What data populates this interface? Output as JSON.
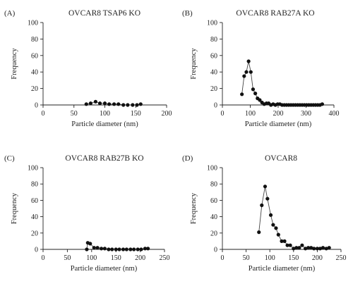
{
  "chart_data": [
    {
      "type": "line",
      "panel_label": "(A)",
      "title": "OVCAR8 TSAP6 KO",
      "xlabel": "Particle diameter (nm)",
      "ylabel": "Frequency",
      "xlim": [
        0,
        200
      ],
      "ylim": [
        0,
        100
      ],
      "xticks": [
        0,
        50,
        100,
        150,
        200
      ],
      "yticks": [
        0,
        20,
        40,
        60,
        80,
        100
      ],
      "series": [
        {
          "x": [
            70,
            77,
            85,
            92,
            100,
            107,
            115,
            122,
            130,
            137,
            145,
            152,
            158
          ],
          "y": [
            1,
            2,
            4,
            2,
            2,
            1,
            1,
            1,
            0,
            0,
            0,
            0,
            1
          ]
        }
      ]
    },
    {
      "type": "line",
      "panel_label": "(B)",
      "title": "OVCAR8 RAB27A KO",
      "xlabel": "Particle diameter (nm)",
      "ylabel": "Frequency",
      "xlim": [
        0,
        400
      ],
      "ylim": [
        0,
        100
      ],
      "xticks": [
        0,
        100,
        200,
        300,
        400
      ],
      "yticks": [
        0,
        20,
        40,
        60,
        80,
        100
      ],
      "series": [
        {
          "x": [
            70,
            78,
            86,
            94,
            102,
            110,
            118,
            126,
            134,
            142,
            150,
            158,
            166,
            174,
            182,
            190,
            198,
            206,
            214,
            222,
            230,
            238,
            246,
            254,
            262,
            270,
            278,
            286,
            294,
            302,
            310,
            318,
            326,
            334,
            342,
            350,
            358
          ],
          "y": [
            13,
            35,
            40,
            53,
            40,
            19,
            14,
            8,
            6,
            3,
            1,
            2,
            2,
            0,
            1,
            0,
            1,
            1,
            0,
            0,
            0,
            0,
            0,
            0,
            0,
            0,
            0,
            0,
            0,
            0,
            0,
            0,
            0,
            0,
            0,
            0,
            1
          ]
        }
      ]
    },
    {
      "type": "line",
      "panel_label": "(C)",
      "title": "OVCAR8 RAB27B KO",
      "xlabel": "Particle diameter (nm)",
      "ylabel": "Frequency",
      "xlim": [
        0,
        250
      ],
      "ylim": [
        0,
        100
      ],
      "xticks": [
        0,
        50,
        100,
        150,
        200,
        250
      ],
      "yticks": [
        0,
        20,
        40,
        60,
        80,
        100
      ],
      "series": [
        {
          "x": [
            90,
            92,
            97,
            105,
            112,
            120,
            127,
            135,
            142,
            150,
            157,
            165,
            172,
            180,
            187,
            195,
            202,
            210,
            216
          ],
          "y": [
            0,
            8,
            7,
            2,
            2,
            1,
            1,
            0,
            0,
            0,
            0,
            0,
            0,
            0,
            0,
            0,
            0,
            1,
            1
          ]
        }
      ]
    },
    {
      "type": "line",
      "panel_label": "(D)",
      "title": "OVCAR8",
      "xlabel": "Particle diameter (nm)",
      "ylabel": "Frequency",
      "xlim": [
        0,
        250
      ],
      "ylim": [
        0,
        100
      ],
      "xticks": [
        0,
        50,
        100,
        150,
        200,
        250
      ],
      "yticks": [
        0,
        20,
        40,
        60,
        80,
        100
      ],
      "series": [
        {
          "x": [
            77,
            83,
            90,
            95,
            102,
            107,
            113,
            118,
            125,
            131,
            137,
            143,
            150,
            156,
            162,
            168,
            175,
            181,
            187,
            193,
            200,
            206,
            212,
            219,
            225
          ],
          "y": [
            21,
            54,
            77,
            62,
            42,
            30,
            26,
            18,
            10,
            10,
            5,
            5,
            1,
            2,
            2,
            5,
            1,
            2,
            2,
            1,
            1,
            1,
            2,
            1,
            2
          ]
        }
      ]
    }
  ]
}
